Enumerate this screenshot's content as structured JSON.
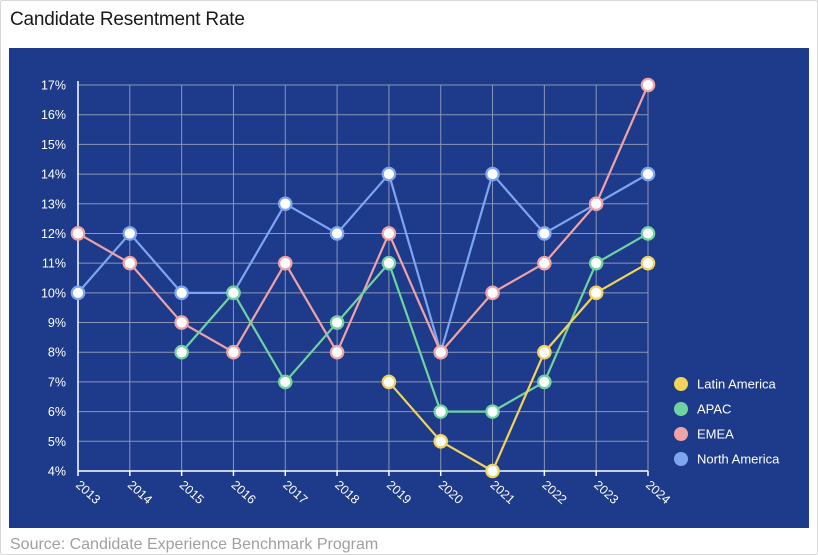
{
  "title": "Candidate Resentment Rate",
  "source": "Source: Candidate Experience Benchmark Program",
  "colors": {
    "panel_background": "#1e3a8a",
    "grid": "#8a96b8",
    "axis": "#ffffff"
  },
  "chart_data": {
    "type": "line",
    "title": "Candidate Resentment Rate",
    "x": [
      "2013",
      "2014",
      "2015",
      "2016",
      "2017",
      "2018",
      "2019",
      "2020",
      "2021",
      "2022",
      "2023",
      "2024"
    ],
    "ylim": [
      4,
      17
    ],
    "y_tick_labels": [
      "4%",
      "5%",
      "6%",
      "7%",
      "8%",
      "9%",
      "10%",
      "11%",
      "12%",
      "13%",
      "14%",
      "15%",
      "16%",
      "17%"
    ],
    "grid": true,
    "legend_position": "bottom-right",
    "series": [
      {
        "name": "North America",
        "color": "#7ea6f0",
        "values": [
          10,
          12,
          10,
          10,
          13,
          12,
          14,
          8,
          14,
          12,
          13,
          14
        ]
      },
      {
        "name": "EMEA",
        "color": "#f0a3a6",
        "values": [
          12,
          11,
          9,
          8,
          11,
          8,
          12,
          8,
          10,
          11,
          13,
          17
        ]
      },
      {
        "name": "APAC",
        "color": "#6fd3a0",
        "values": [
          null,
          null,
          8,
          10,
          7,
          9,
          11,
          6,
          6,
          7,
          11,
          12
        ]
      },
      {
        "name": "Latin America",
        "color": "#f2d35a",
        "values": [
          null,
          null,
          null,
          null,
          null,
          null,
          7,
          5,
          4,
          8,
          10,
          11
        ]
      }
    ],
    "legend_order": [
      "Latin America",
      "APAC",
      "EMEA",
      "North America"
    ]
  }
}
